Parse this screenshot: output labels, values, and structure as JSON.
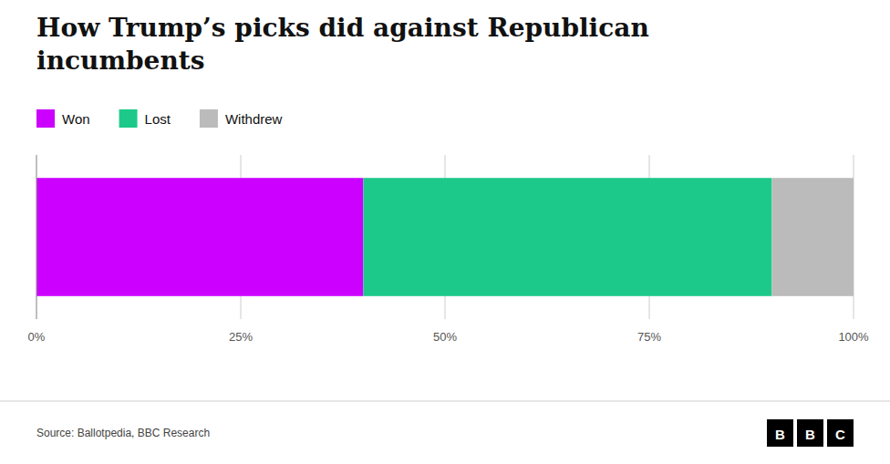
{
  "chart_data": {
    "type": "bar",
    "orientation": "horizontal",
    "stacked": true,
    "title": "How Trump’s picks did against Republican\nincumbents",
    "categories": [
      null
    ],
    "series": [
      {
        "name": "Won",
        "color": "#cc00ff",
        "values": [
          40
        ]
      },
      {
        "name": "Lost",
        "color": "#1dc98a",
        "values": [
          50
        ]
      },
      {
        "name": "Withdrew",
        "color": "#bbbbbb",
        "values": [
          10
        ]
      }
    ],
    "xlim": [
      0,
      100
    ],
    "xticks": [
      {
        "value": 0,
        "label": "0%"
      },
      {
        "value": 25,
        "label": "25%"
      },
      {
        "value": 50,
        "label": "50%"
      },
      {
        "value": 75,
        "label": "75%"
      },
      {
        "value": 100,
        "label": "100%"
      }
    ],
    "grid": true,
    "legend": "top",
    "annotations": [
      "Source: Ballotpedia, BBC Research",
      "BBC"
    ]
  }
}
